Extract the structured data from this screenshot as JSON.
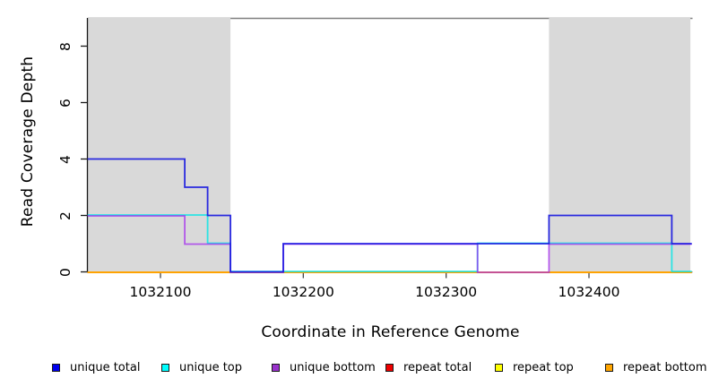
{
  "chart_data": {
    "type": "line",
    "subtype": "step-after",
    "title": "",
    "xlabel": "Coordinate in Reference Genome",
    "ylabel": "Read Coverage Depth",
    "xlim": [
      1032049,
      1032472
    ],
    "ylim": [
      0,
      9
    ],
    "grid": false,
    "xticks": [
      1032100,
      1032200,
      1032300,
      1032400
    ],
    "yticks": [
      0,
      2,
      4,
      6,
      8
    ],
    "region_fill": "#d9d9d9",
    "repeat_regions": [
      [
        1032049,
        1032149
      ],
      [
        1032372,
        1032471
      ]
    ],
    "series": [
      {
        "name": "unique total",
        "color": "#1a1ae0",
        "opacity": 0.92,
        "points": [
          [
            1032049,
            4
          ],
          [
            1032117,
            3
          ],
          [
            1032133,
            2
          ],
          [
            1032149,
            0
          ],
          [
            1032186,
            1
          ],
          [
            1032372,
            2
          ],
          [
            1032458,
            1
          ],
          [
            1032472,
            1
          ]
        ]
      },
      {
        "name": "unique top",
        "color": "#00e5e5",
        "opacity": 0.8,
        "points": [
          [
            1032049,
            2
          ],
          [
            1032133,
            1
          ],
          [
            1032149,
            0
          ],
          [
            1032322,
            1
          ],
          [
            1032458,
            0
          ],
          [
            1032472,
            0
          ]
        ]
      },
      {
        "name": "unique bottom",
        "color": "#a020f0",
        "opacity": 0.7,
        "points": [
          [
            1032049,
            2
          ],
          [
            1032117,
            1
          ],
          [
            1032149,
            0
          ],
          [
            1032186,
            1
          ],
          [
            1032322,
            0
          ],
          [
            1032372,
            1
          ],
          [
            1032472,
            1
          ]
        ]
      },
      {
        "name": "repeat total",
        "color": "#e00000",
        "opacity": 1,
        "points": [
          [
            1032049,
            0
          ],
          [
            1032472,
            0
          ]
        ]
      },
      {
        "name": "repeat top",
        "color": "#ffff00",
        "opacity": 1,
        "points": [
          [
            1032049,
            0
          ],
          [
            1032472,
            0
          ]
        ]
      },
      {
        "name": "repeat bottom",
        "color": "#ff9d00",
        "opacity": 1,
        "points": [
          [
            1032049,
            0
          ],
          [
            1032472,
            0
          ]
        ]
      }
    ],
    "draw_order": [
      3,
      4,
      5,
      1,
      2,
      0
    ],
    "legend": [
      {
        "label": "unique total",
        "color": "#0000ee"
      },
      {
        "label": "unique top",
        "color": "#00ffff"
      },
      {
        "label": "unique bottom",
        "color": "#9932cc"
      },
      {
        "label": "repeat total",
        "color": "#ee0000"
      },
      {
        "label": "repeat top",
        "color": "#ffff00"
      },
      {
        "label": "repeat bottom",
        "color": "#ffa500"
      }
    ],
    "legend_position": "bottom"
  }
}
